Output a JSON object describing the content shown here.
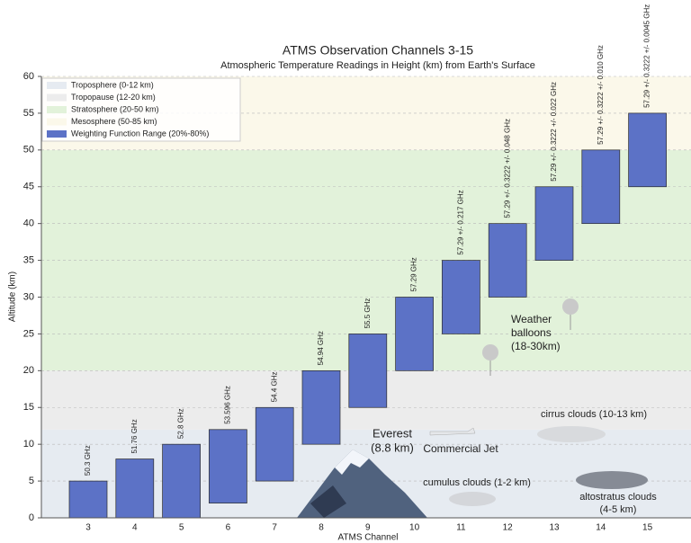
{
  "chart_data": {
    "type": "floating-bar",
    "title": "ATMS Observation Channels 3-15",
    "subtitle": "Atmospheric Temperature Readings in Height (km) from Earth's Surface",
    "x_label": "ATMS Channel",
    "y_label": "Altitude (km)",
    "categories": [
      "3",
      "4",
      "5",
      "6",
      "7",
      "8",
      "9",
      "10",
      "11",
      "12",
      "13",
      "14",
      "15"
    ],
    "series": [
      {
        "name": "Weighting Function Range (20%-80%)",
        "color": "#5c72c6",
        "low": [
          0,
          0,
          0,
          2,
          5,
          10,
          15,
          20,
          25,
          30,
          35,
          40,
          45
        ],
        "high": [
          5,
          8,
          10,
          12,
          15,
          20,
          25,
          30,
          35,
          40,
          45,
          50,
          55
        ],
        "frequencies": [
          "50.3 GHz",
          "51.76 GHz",
          "52.8 GHz",
          "53.596 GHz",
          "54.4 GHz",
          "54.94 GHz",
          "55.5 GHz",
          "57.29 GHz",
          "57.29 +/- 0.217 GHz",
          "57.29 +/- 0.3222 +/- 0.048 GHz",
          "57.29 +/- 0.3222 +/- 0.022 GHz",
          "57.29 +/- 0.3222 +/- 0.010 GHz",
          "57.29 +/- 0.3222 +/- 0.0045 GHz"
        ]
      }
    ],
    "layers": [
      {
        "name": "Troposphere (0-12 km)",
        "range": [
          0,
          12
        ],
        "color": "#e6ebf1"
      },
      {
        "name": "Tropopause (12-20 km)",
        "range": [
          12,
          20
        ],
        "color": "#ececec"
      },
      {
        "name": "Stratosphere (20-50 km)",
        "range": [
          20,
          50
        ],
        "color": "#e2f2da"
      },
      {
        "name": "Mesosphere (50-85 km)",
        "range": [
          50,
          85
        ],
        "color": "#fbf8ea"
      }
    ],
    "ylim": [
      0,
      60
    ],
    "yticks": [
      0,
      5,
      10,
      15,
      20,
      25,
      30,
      35,
      40,
      45,
      50,
      55,
      60
    ],
    "grid": true,
    "legend": "upper left",
    "annotations": [
      [
        "Everest",
        "(8.8 km)"
      ],
      [
        "Commercial Jet"
      ],
      [
        "cumulus clouds (1-2 km)"
      ],
      [
        "cirrus clouds (10-13 km)"
      ],
      [
        "altostratus clouds",
        "(4-5 km)"
      ],
      [
        "Weather",
        "balloons",
        "(18-30km)"
      ]
    ]
  }
}
